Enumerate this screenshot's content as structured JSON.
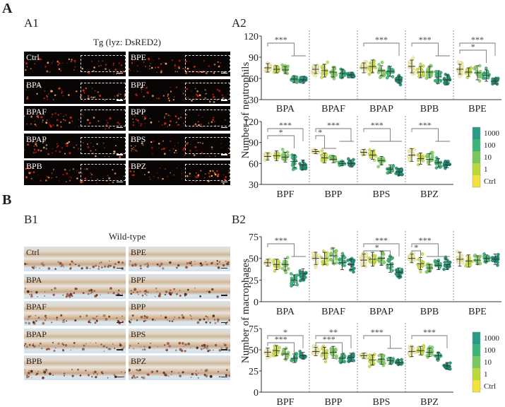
{
  "panels": {
    "A": {
      "letter": "A",
      "left_label": "A1",
      "right_label": "A2",
      "image_title": "Tg (lyz: DsRED2)"
    },
    "B": {
      "letter": "B",
      "left_label": "B1",
      "right_label": "B2",
      "image_title": "Wild-type"
    }
  },
  "image_tiles": {
    "left_column": [
      "Ctrl",
      "BPA",
      "BPAF",
      "BPAP",
      "BPB"
    ],
    "right_column": [
      "BPE",
      "BPF",
      "BPP",
      "BPS",
      "BPZ"
    ]
  },
  "legend": {
    "entries": [
      "1000",
      "100",
      "10",
      "1",
      "Ctrl"
    ],
    "colors": [
      "#2a9a86",
      "#3cb57a",
      "#77c85e",
      "#bcd93a",
      "#f2e23c"
    ]
  },
  "group_colors": [
    "#f0e38a",
    "#c9db52",
    "#8ccf6a",
    "#3fb07a",
    "#1f8e74"
  ],
  "chart_data": [
    {
      "type": "scatter",
      "id": "A2-top",
      "ylabel": "Number of neutrophils",
      "ylim": [
        30,
        120
      ],
      "yticks": [
        30,
        60,
        90,
        120
      ],
      "categories": [
        "BPA",
        "BPAF",
        "BPAP",
        "BPB",
        "BPE"
      ],
      "groups": [
        "Ctrl",
        "1",
        "10",
        "100",
        "1000"
      ],
      "means": [
        [
          75,
          73,
          72,
          59,
          58
        ],
        [
          73,
          71,
          69,
          67,
          65
        ],
        [
          75,
          77,
          71,
          70,
          58
        ],
        [
          77,
          69,
          69,
          62,
          58
        ],
        [
          73,
          69,
          68,
          64,
          56
        ]
      ],
      "sds": [
        [
          6,
          5,
          5,
          5,
          5
        ],
        [
          6,
          9,
          7,
          6,
          4
        ],
        [
          7,
          9,
          7,
          7,
          5
        ],
        [
          9,
          8,
          8,
          9,
          7
        ],
        [
          7,
          6,
          10,
          8,
          4
        ]
      ],
      "significance": [
        {
          "category": "BPA",
          "from": 0,
          "to": 3,
          "label": "***",
          "extra_line": [
            3,
            4
          ]
        },
        {
          "category": "BPAP",
          "from": 0,
          "to": 4,
          "label": "***"
        },
        {
          "category": "BPB",
          "from": 0,
          "to": 3,
          "label": "***",
          "extra_line": [
            3,
            4
          ]
        },
        {
          "category": "BPE",
          "from": 0,
          "to": 4,
          "label": "***"
        },
        {
          "category": "BPE",
          "from": 0,
          "to": 3,
          "label": "*"
        }
      ]
    },
    {
      "type": "scatter",
      "id": "A2-bottom",
      "ylabel": "Number of neutrophils",
      "ylim": [
        30,
        120
      ],
      "yticks": [
        30,
        60,
        90,
        120
      ],
      "categories": [
        "BPF",
        "BPP",
        "BPS",
        "BPZ"
      ],
      "groups": [
        "Ctrl",
        "1",
        "10",
        "100",
        "1000"
      ],
      "means": [
        [
          70,
          71,
          69,
          63,
          58
        ],
        [
          77,
          68,
          66,
          60,
          60
        ],
        [
          76,
          72,
          64,
          52,
          48
        ],
        [
          72,
          67,
          66,
          61,
          58
        ]
      ],
      "sds": [
        [
          5,
          7,
          7,
          9,
          7
        ],
        [
          3,
          7,
          5,
          3,
          5
        ],
        [
          4,
          6,
          6,
          6,
          5
        ],
        [
          9,
          8,
          8,
          6,
          4
        ]
      ],
      "significance": [
        {
          "category": "BPF",
          "from": 0,
          "to": 4,
          "label": "***"
        },
        {
          "category": "BPF",
          "from": 0,
          "to": 3,
          "label": "*"
        },
        {
          "category": "BPP",
          "from": 0,
          "to": 4,
          "label": "***",
          "extra_line": [
            3,
            4
          ]
        },
        {
          "category": "BPP",
          "from": 0,
          "to": 1,
          "label": "*",
          "extra_line": [
            1,
            2
          ]
        },
        {
          "category": "BPS",
          "from": 0,
          "to": 3,
          "label": "***",
          "extra_line": [
            1,
            4
          ]
        },
        {
          "category": "BPZ",
          "from": 0,
          "to": 3,
          "label": "***",
          "extra_line": [
            3,
            4
          ]
        }
      ]
    },
    {
      "type": "scatter",
      "id": "B2-top",
      "ylabel": "Number of macrophages",
      "ylim": [
        0,
        75
      ],
      "yticks": [
        0,
        25,
        50,
        75
      ],
      "categories": [
        "BPA",
        "BPAF",
        "BPAP",
        "BPB",
        "BPE"
      ],
      "groups": [
        "Ctrl",
        "1",
        "10",
        "100",
        "1000"
      ],
      "means": [
        [
          45,
          43,
          43,
          25,
          32
        ],
        [
          50,
          50,
          53,
          45,
          43
        ],
        [
          48,
          49,
          50,
          43,
          34
        ],
        [
          50,
          44,
          39,
          42,
          43
        ],
        [
          49,
          47,
          48,
          50,
          49
        ]
      ],
      "sds": [
        [
          4,
          6,
          7,
          6,
          6
        ],
        [
          7,
          7,
          9,
          8,
          6
        ],
        [
          7,
          8,
          8,
          9,
          5
        ],
        [
          5,
          7,
          4,
          5,
          6
        ],
        [
          8,
          7,
          5,
          4,
          6
        ]
      ],
      "significance": [
        {
          "category": "BPA",
          "from": 0,
          "to": 3,
          "label": "***",
          "extra_line": [
            3,
            4
          ]
        },
        {
          "category": "BPAP",
          "from": 0,
          "to": 4,
          "label": "***"
        },
        {
          "category": "BPAP",
          "from": 0,
          "to": 3,
          "label": "*"
        },
        {
          "category": "BPB",
          "from": 0,
          "to": 3,
          "label": "***",
          "extra_line": [
            2,
            4
          ]
        },
        {
          "category": "BPB",
          "from": 0,
          "to": 1,
          "label": "*"
        }
      ]
    },
    {
      "type": "scatter",
      "id": "B2-bottom",
      "ylabel": "Number of macrophages",
      "ylim": [
        0,
        75
      ],
      "yticks": [
        0,
        25,
        50,
        75
      ],
      "categories": [
        "BPF",
        "BPP",
        "BPS",
        "BPZ"
      ],
      "groups": [
        "Ctrl",
        "1",
        "10",
        "100",
        "1000"
      ],
      "means": [
        [
          47,
          49,
          45,
          40,
          43
        ],
        [
          48,
          46,
          47,
          40,
          41
        ],
        [
          43,
          38,
          39,
          37,
          35
        ],
        [
          48,
          49,
          47,
          43,
          31
        ]
      ],
      "sds": [
        [
          5,
          6,
          6,
          5,
          4
        ],
        [
          5,
          7,
          7,
          5,
          5
        ],
        [
          3,
          6,
          6,
          4,
          3
        ],
        [
          6,
          5,
          5,
          4,
          4
        ]
      ],
      "significance": [
        {
          "category": "BPF",
          "from": 0,
          "to": 4,
          "label": "*"
        },
        {
          "category": "BPF",
          "from": 0,
          "to": 3,
          "label": "***"
        },
        {
          "category": "BPP",
          "from": 0,
          "to": 4,
          "label": "**"
        },
        {
          "category": "BPP",
          "from": 0,
          "to": 3,
          "label": "***"
        },
        {
          "category": "BPS",
          "from": 0,
          "to": 3,
          "label": "***",
          "extra_line": [
            3,
            4
          ]
        },
        {
          "category": "BPZ",
          "from": 0,
          "to": 4,
          "label": "***"
        }
      ]
    }
  ]
}
